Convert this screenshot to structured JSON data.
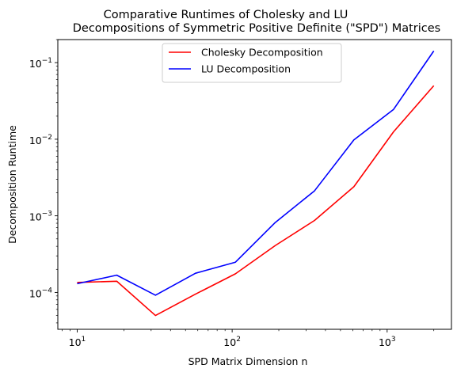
{
  "chart_data": {
    "type": "line",
    "title_line1": "Comparative Runtimes of Cholesky and LU",
    "title_line2": "Decompositions of Symmetric Positive Definite (\"SPD\") Matrices",
    "xlabel": "SPD Matrix Dimension n",
    "ylabel": "Decomposition Runtime",
    "xscale": "log",
    "yscale": "log",
    "xlim": [
      7.5,
      2600
    ],
    "ylim": [
      3.3e-05,
      0.2
    ],
    "grid": false,
    "legend_position": "top-center",
    "xticks": [
      {
        "value": 10,
        "base": "10",
        "exp": "1"
      },
      {
        "value": 100,
        "base": "10",
        "exp": "2"
      },
      {
        "value": 1000,
        "base": "10",
        "exp": "3"
      }
    ],
    "yticks": [
      {
        "value": 0.0001,
        "base": "10",
        "exp": "−4"
      },
      {
        "value": 0.001,
        "base": "10",
        "exp": "−3"
      },
      {
        "value": 0.01,
        "base": "10",
        "exp": "−2"
      },
      {
        "value": 0.1,
        "base": "10",
        "exp": "−1"
      }
    ],
    "x": [
      10,
      18,
      32,
      58,
      105,
      190,
      340,
      610,
      1100,
      2000
    ],
    "series": [
      {
        "name": "Cholesky Decomposition",
        "color": "#ff0000",
        "values": [
          0.000135,
          0.00014,
          5e-05,
          9.5e-05,
          0.000175,
          0.00041,
          0.00087,
          0.0024,
          0.0125,
          0.05
        ]
      },
      {
        "name": "LU Decomposition",
        "color": "#0000ff",
        "values": [
          0.00013,
          0.000168,
          9.2e-05,
          0.000178,
          0.000248,
          0.00082,
          0.00212,
          0.0098,
          0.0245,
          0.142
        ]
      }
    ]
  }
}
